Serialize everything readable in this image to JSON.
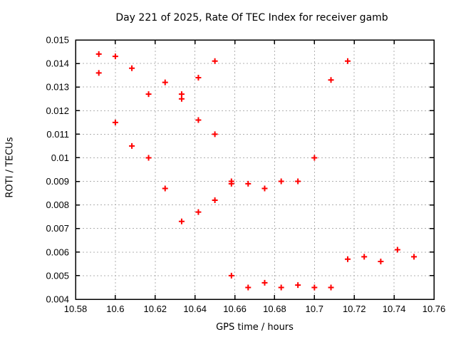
{
  "window": {
    "background": "#ffffff",
    "text_color": "#000000"
  },
  "chart_data": {
    "type": "scatter",
    "title": "Day 221 of 2025, Rate Of TEC Index for receiver gamb",
    "xlabel": "GPS time / hours",
    "ylabel": "ROTI / TECUs",
    "xlim": [
      10.58,
      10.76
    ],
    "ylim": [
      0.004,
      0.015
    ],
    "xticks": [
      10.58,
      10.6,
      10.62,
      10.64,
      10.66,
      10.68,
      10.7,
      10.72,
      10.74,
      10.76
    ],
    "xtick_labels": [
      "10.58",
      "10.6",
      "10.62",
      "10.64",
      "10.66",
      "10.68",
      "10.7",
      "10.72",
      "10.74",
      "10.76"
    ],
    "yticks": [
      0.004,
      0.005,
      0.006,
      0.007,
      0.008,
      0.009,
      0.01,
      0.011,
      0.012,
      0.013,
      0.014,
      0.015
    ],
    "ytick_labels": [
      "0.004",
      "0.005",
      "0.006",
      "0.007",
      "0.008",
      "0.009",
      "0.01",
      "0.011",
      "0.012",
      "0.013",
      "0.014",
      "0.015"
    ],
    "grid": true,
    "legend": "none",
    "grid_color": "#b0b0b0",
    "border_color": "#000000",
    "marker": {
      "shape": "plus",
      "color": "#ff0000",
      "size": 9
    },
    "points": [
      [
        10.5917,
        0.0144
      ],
      [
        10.5917,
        0.0136
      ],
      [
        10.6,
        0.0143
      ],
      [
        10.6,
        0.0115
      ],
      [
        10.6083,
        0.0138
      ],
      [
        10.6083,
        0.0105
      ],
      [
        10.6167,
        0.0127
      ],
      [
        10.6167,
        0.01
      ],
      [
        10.625,
        0.0132
      ],
      [
        10.625,
        0.0087
      ],
      [
        10.6333,
        0.0127
      ],
      [
        10.6333,
        0.0125
      ],
      [
        10.6333,
        0.0073
      ],
      [
        10.6417,
        0.0134
      ],
      [
        10.6417,
        0.0116
      ],
      [
        10.6417,
        0.0077
      ],
      [
        10.65,
        0.0141
      ],
      [
        10.65,
        0.011
      ],
      [
        10.65,
        0.0082
      ],
      [
        10.6583,
        0.009
      ],
      [
        10.6583,
        0.0089
      ],
      [
        10.6583,
        0.005
      ],
      [
        10.6667,
        0.0089
      ],
      [
        10.6667,
        0.0045
      ],
      [
        10.675,
        0.0087
      ],
      [
        10.675,
        0.0047
      ],
      [
        10.6833,
        0.009
      ],
      [
        10.6833,
        0.0045
      ],
      [
        10.6917,
        0.009
      ],
      [
        10.6917,
        0.0046
      ],
      [
        10.7,
        0.01
      ],
      [
        10.7,
        0.0045
      ],
      [
        10.7083,
        0.0133
      ],
      [
        10.7083,
        0.0045
      ],
      [
        10.7167,
        0.0141
      ],
      [
        10.7167,
        0.0057
      ],
      [
        10.725,
        0.0058
      ],
      [
        10.7333,
        0.0056
      ],
      [
        10.7417,
        0.0061
      ],
      [
        10.75,
        0.0058
      ]
    ]
  }
}
